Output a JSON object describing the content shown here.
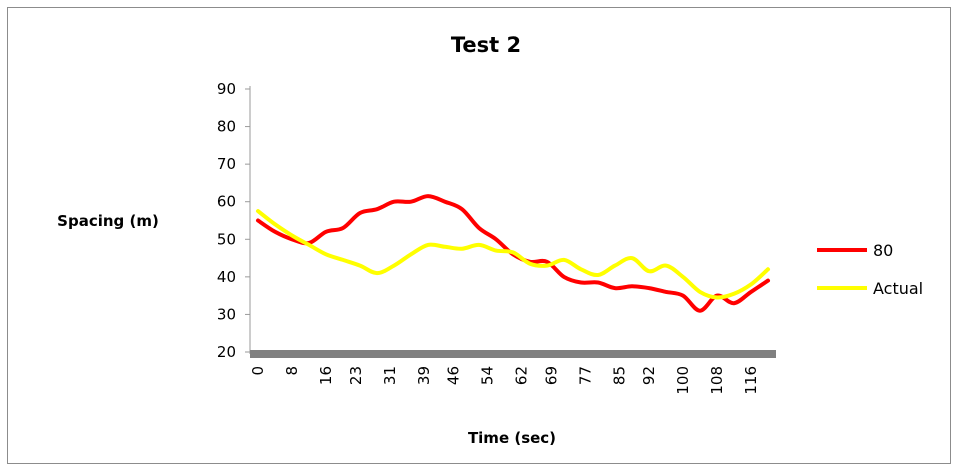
{
  "chart_data": {
    "type": "line",
    "title": "Test 2",
    "xlabel": "Time (sec)",
    "ylabel": "Spacing (m)",
    "ylim": [
      20,
      90
    ],
    "yticks": [
      20,
      30,
      40,
      50,
      60,
      70,
      80,
      90
    ],
    "xlim": [
      0,
      120
    ],
    "xtick_labels": [
      "0",
      "8",
      "16",
      "23",
      "31",
      "39",
      "46",
      "54",
      "62",
      "69",
      "77",
      "85",
      "92",
      "100",
      "108",
      "116"
    ],
    "xtick_values": [
      0,
      8,
      16,
      23,
      31,
      39,
      46,
      54,
      62,
      69,
      77,
      85,
      92,
      100,
      108,
      116
    ],
    "legend_position": "right",
    "grid": false,
    "x": [
      0,
      4,
      8,
      12,
      16,
      20,
      24,
      28,
      32,
      36,
      40,
      44,
      48,
      52,
      56,
      60,
      64,
      68,
      72,
      76,
      80,
      84,
      88,
      92,
      96,
      100,
      104,
      108,
      112,
      116,
      120
    ],
    "series": [
      {
        "name": "80",
        "color": "#ff0000",
        "values": [
          55,
          52,
          50,
          49,
          52,
          53,
          57,
          58,
          60,
          60,
          61.5,
          60,
          58,
          53,
          50,
          46,
          44,
          44,
          40,
          38.5,
          38.5,
          37,
          37.5,
          37,
          36,
          35,
          31,
          35,
          33,
          36,
          39
        ]
      },
      {
        "name": "Actual",
        "color": "#ffff00",
        "values": [
          57.5,
          54,
          51,
          48.5,
          46,
          44.5,
          43,
          41,
          43,
          46,
          48.5,
          48,
          47.5,
          48.5,
          47,
          46.5,
          43.5,
          43,
          44.5,
          42,
          40.5,
          43,
          45,
          41.5,
          43,
          40,
          36,
          34.5,
          35.5,
          38,
          42
        ]
      }
    ]
  }
}
